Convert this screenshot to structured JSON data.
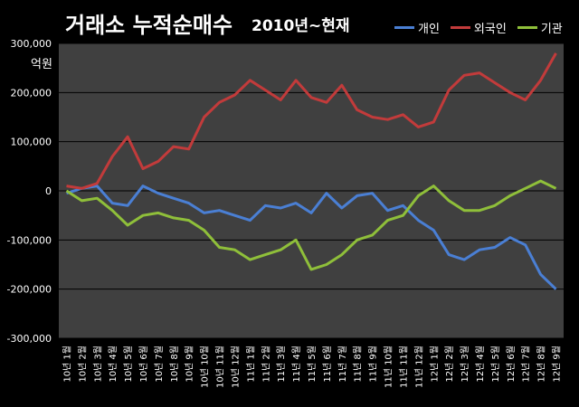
{
  "title": "거래소 누적순매수",
  "subtitle": "2010년~현재",
  "unit_label": "억원",
  "chart_data": {
    "type": "line",
    "title": "거래소 누적순매수",
    "subtitle": "2010년~현재",
    "ylabel": "억원",
    "ylim": [
      -300000,
      300000
    ],
    "y_ticks": [
      "300,000",
      "200,000",
      "100,000",
      "0",
      "-100,000",
      "-200,000",
      "-300,000"
    ],
    "grid": true,
    "legend_position": "top-right",
    "categories": [
      "10년 1월",
      "10년 2월",
      "10년 3월",
      "10년 4월",
      "10년 5월",
      "10년 6월",
      "10년 7월",
      "10년 8월",
      "10년 9월",
      "10년 10월",
      "10년 11월",
      "10년 12월",
      "11년 1월",
      "11년 2월",
      "11년 3월",
      "11년 4월",
      "11년 5월",
      "11년 6월",
      "11년 7월",
      "11년 8월",
      "11년 9월",
      "11년 10월",
      "11년 11월",
      "11년 12월",
      "12년 1월",
      "12년 2월",
      "12년 3월",
      "12년 4월",
      "12년 5월",
      "12년 6월",
      "12년 7월",
      "12년 8월",
      "12년 9월"
    ],
    "series": [
      {
        "name": "개인",
        "color": "#4a7fd4",
        "values": [
          -5000,
          5000,
          10000,
          -25000,
          -30000,
          10000,
          -5000,
          -15000,
          -25000,
          -45000,
          -40000,
          -50000,
          -60000,
          -30000,
          -35000,
          -25000,
          -45000,
          -5000,
          -35000,
          -10000,
          -5000,
          -40000,
          -30000,
          -60000,
          -80000,
          -130000,
          -140000,
          -120000,
          -115000,
          -95000,
          -110000,
          -170000,
          -200000
        ]
      },
      {
        "name": "외국인",
        "color": "#c23b3b",
        "values": [
          10000,
          5000,
          15000,
          70000,
          110000,
          45000,
          60000,
          90000,
          85000,
          150000,
          180000,
          195000,
          225000,
          205000,
          185000,
          225000,
          190000,
          180000,
          215000,
          165000,
          150000,
          145000,
          155000,
          130000,
          140000,
          205000,
          235000,
          240000,
          220000,
          200000,
          185000,
          225000,
          280000
        ]
      },
      {
        "name": "기관",
        "color": "#8fbf3a",
        "values": [
          0,
          -20000,
          -15000,
          -40000,
          -70000,
          -50000,
          -45000,
          -55000,
          -60000,
          -80000,
          -115000,
          -120000,
          -140000,
          -130000,
          -120000,
          -100000,
          -160000,
          -150000,
          -130000,
          -100000,
          -90000,
          -60000,
          -50000,
          -10000,
          10000,
          -20000,
          -40000,
          -40000,
          -30000,
          -10000,
          5000,
          20000,
          5000
        ]
      }
    ]
  }
}
